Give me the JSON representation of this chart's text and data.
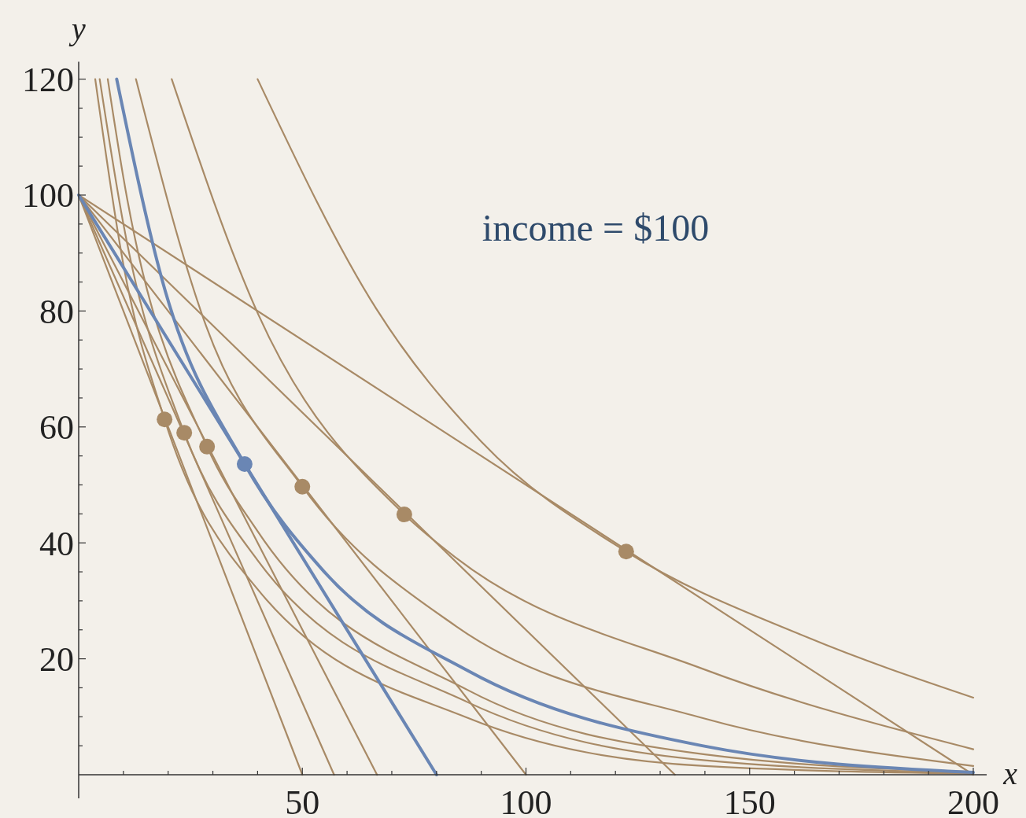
{
  "chart_data": {
    "type": "line",
    "xlabel": "x",
    "ylabel": "y",
    "annotations": [
      "income = $100"
    ],
    "xlim": [
      0,
      203
    ],
    "ylim": [
      0,
      123
    ],
    "xticks": [
      {
        "value": 10,
        "label": null
      },
      {
        "value": 20,
        "label": null
      },
      {
        "value": 30,
        "label": null
      },
      {
        "value": 40,
        "label": null
      },
      50,
      {
        "value": 60,
        "label": null
      },
      {
        "value": 70,
        "label": null
      },
      {
        "value": 80,
        "label": null
      },
      {
        "value": 90,
        "label": null
      },
      100,
      {
        "value": 110,
        "label": null
      },
      {
        "value": 120,
        "label": null
      },
      {
        "value": 130,
        "label": null
      },
      {
        "value": 140,
        "label": null
      },
      150,
      {
        "value": 160,
        "label": null
      },
      {
        "value": 170,
        "label": null
      },
      {
        "value": 180,
        "label": null
      },
      {
        "value": 190,
        "label": null
      },
      200
    ],
    "yticks": [
      {
        "value": 5,
        "label": null
      },
      {
        "value": 10,
        "label": null
      },
      {
        "value": 15,
        "label": null
      },
      20,
      {
        "value": 25,
        "label": null
      },
      {
        "value": 30,
        "label": null
      },
      {
        "value": 35,
        "label": null
      },
      40,
      {
        "value": 45,
        "label": null
      },
      {
        "value": 50,
        "label": null
      },
      {
        "value": 55,
        "label": null
      },
      60,
      {
        "value": 65,
        "label": null
      },
      {
        "value": 70,
        "label": null
      },
      {
        "value": 75,
        "label": null
      },
      80,
      {
        "value": 85,
        "label": null
      },
      {
        "value": 90,
        "label": null
      },
      {
        "value": 95,
        "label": null
      },
      100,
      {
        "value": 105,
        "label": null
      },
      {
        "value": 110,
        "label": null
      },
      {
        "value": 115,
        "label": null
      },
      120
    ],
    "line_style": "solid",
    "series": [
      {
        "color": "#a88a66",
        "x": [
          0,
          50
        ],
        "values": [
          100,
          0
        ]
      },
      {
        "color": "#a88a66",
        "x": [
          0,
          57.1
        ],
        "values": [
          100,
          0
        ]
      },
      {
        "color": "#a88a66",
        "x": [
          0,
          66.7
        ],
        "values": [
          100,
          0
        ]
      },
      {
        "color": "#a88a66",
        "x": [
          0,
          100
        ],
        "values": [
          100,
          0
        ]
      },
      {
        "color": "#a88a66",
        "x": [
          0,
          133.3
        ],
        "values": [
          100,
          0
        ]
      },
      {
        "color": "#a88a66",
        "x": [
          0,
          200
        ],
        "values": [
          100,
          0
        ]
      },
      {
        "color": "#a88a66",
        "x": [
          3.7,
          10,
          19.2,
          40,
          87,
          140,
          200
        ],
        "values": [
          120,
          88,
          61.3,
          32,
          9.8,
          1.5,
          0.2
        ]
      },
      {
        "color": "#a88a66",
        "x": [
          4.7,
          10,
          23.6,
          40,
          87,
          140,
          200
        ],
        "values": [
          120,
          95,
          59,
          37,
          12.5,
          2.5,
          0.3
        ]
      },
      {
        "color": "#a88a66",
        "x": [
          6.5,
          10,
          28.7,
          40,
          87,
          140,
          200
        ],
        "values": [
          120,
          103,
          56.6,
          42,
          14.6,
          3.5,
          0.5
        ]
      },
      {
        "color": "#a88a66",
        "x": [
          12.8,
          28.4,
          50,
          84.4,
          139.4,
          200
        ],
        "values": [
          120,
          77.6,
          49.7,
          25.6,
          9.8,
          1.5
        ]
      },
      {
        "color": "#a88a66",
        "x": [
          20.8,
          40.1,
          72.8,
          84.4,
          139.4,
          200
        ],
        "values": [
          120,
          79.5,
          44.9,
          37.4,
          18.3,
          4.4
        ]
      },
      {
        "color": "#a88a66",
        "x": [
          40,
          66.6,
          90.1,
          122.4,
          162.9,
          200
        ],
        "values": [
          120,
          80.3,
          57.4,
          38.5,
          23.7,
          13.3
        ]
      },
      {
        "color": "#6a86b4",
        "x": [
          0,
          80
        ],
        "values": [
          100,
          0
        ]
      },
      {
        "color": "#6a86b4",
        "x": [
          8.5,
          18.5,
          37.1,
          54.8,
          87.1,
          139.4,
          200
        ],
        "values": [
          120,
          85.8,
          53.6,
          35.1,
          17.9,
          5,
          0.4
        ]
      },
      {
        "type": "scatter",
        "marker": "circle",
        "color": "#a88a66",
        "x": [
          19.2,
          23.6,
          28.7,
          50,
          72.8,
          122.4
        ],
        "values": [
          61.3,
          59,
          56.6,
          49.7,
          44.9,
          38.5
        ]
      },
      {
        "type": "scatter",
        "marker": "circle",
        "color": "#6a86b4",
        "x": [
          37.1
        ],
        "values": [
          53.6
        ]
      }
    ]
  }
}
